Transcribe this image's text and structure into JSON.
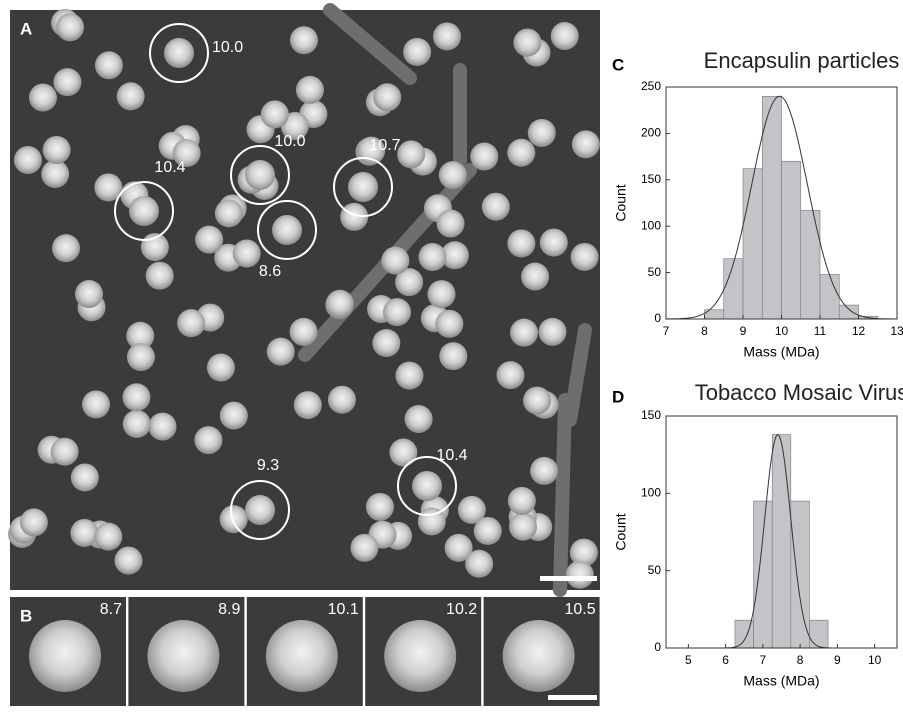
{
  "panels": {
    "a": {
      "label": "A",
      "annotations": [
        "10.0",
        "10.0",
        "10.4",
        "10.7",
        "8.6",
        "9.3",
        "10.4"
      ]
    },
    "b": {
      "label": "B",
      "tiles": [
        "8.7",
        "8.9",
        "10.1",
        "10.2",
        "10.5"
      ]
    }
  },
  "chart_data": [
    {
      "type": "histogram",
      "panel_label": "C",
      "title": "Encapsulin particles",
      "x_label": "Mass (MDa)",
      "y_label": "Count",
      "bins": [
        8,
        8.5,
        9,
        9.5,
        10,
        10.5,
        11,
        11.5,
        12,
        12.5
      ],
      "values": [
        10,
        65,
        162,
        240,
        170,
        117,
        48,
        15,
        3
      ],
      "color": "#c4c4c8",
      "fit": {
        "mu": 9.95,
        "sigma": 0.72,
        "amplitude": 240
      },
      "xlim": [
        7,
        13
      ],
      "xticks": [
        7,
        8,
        9,
        10,
        11,
        12,
        13
      ],
      "ylim": [
        0,
        250
      ],
      "yticks": [
        0,
        50,
        100,
        150,
        200,
        250
      ]
    },
    {
      "type": "histogram",
      "panel_label": "D",
      "title": "Tobacco Mosaic Virus",
      "x_label": "Mass (MDa)",
      "y_label": "Count",
      "bins": [
        6.25,
        6.75,
        7.25,
        7.75,
        8.25,
        8.75
      ],
      "values": [
        18,
        95,
        138,
        95,
        18
      ],
      "color": "#c4c4c8",
      "fit": {
        "mu": 7.4,
        "sigma": 0.35,
        "amplitude": 138
      },
      "xlim": [
        4.4,
        10.6
      ],
      "xticks": [
        5,
        6,
        7,
        8,
        9,
        10
      ],
      "ylim": [
        0,
        150
      ],
      "yticks": [
        0,
        50,
        100,
        150
      ]
    }
  ]
}
